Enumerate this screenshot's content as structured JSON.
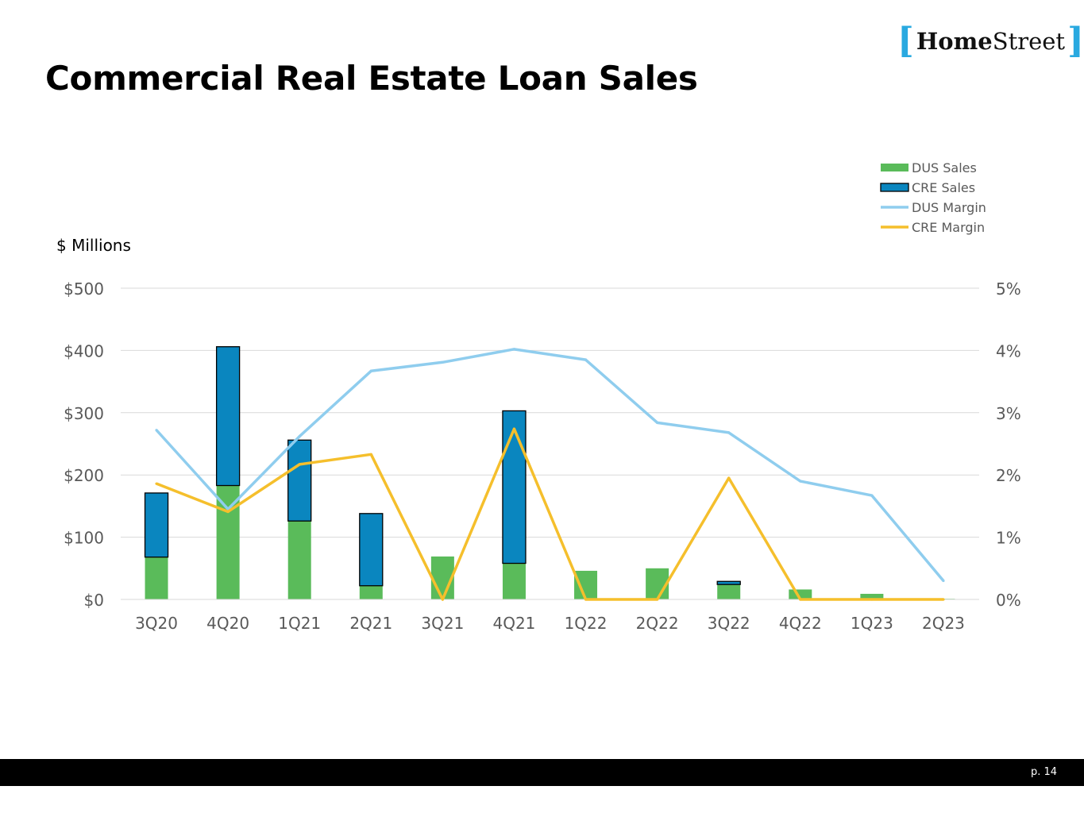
{
  "slide": {
    "title": "Commercial Real Estate Loan Sales",
    "page_number": "p. 14"
  },
  "logo": {
    "open_bracket": "[",
    "home": "Home",
    "street": "Street",
    "close_bracket": "]"
  },
  "colors": {
    "dus_sales": "#5abb5a",
    "cre_sales": "#0a86bf",
    "dus_margin": "#8fcdee",
    "cre_margin": "#f5bf2c",
    "gridline": "#d9d9d9",
    "tick_text": "#595959",
    "legend_text": "#595959"
  },
  "chart_data": {
    "type": "bar",
    "stacked": true,
    "unit_label": "$ Millions",
    "categories": [
      "3Q20",
      "4Q20",
      "1Q21",
      "2Q21",
      "3Q21",
      "4Q21",
      "1Q22",
      "2Q22",
      "3Q22",
      "4Q22",
      "1Q23",
      "2Q23"
    ],
    "y_left": {
      "range": [
        0,
        500
      ],
      "ticks": [
        0,
        100,
        200,
        300,
        400,
        500
      ],
      "tick_labels": [
        "$0",
        "$100",
        "$200",
        "$300",
        "$400",
        "$500"
      ]
    },
    "y_right": {
      "range": [
        0,
        5
      ],
      "ticks": [
        0,
        1,
        2,
        3,
        4,
        5
      ],
      "tick_labels": [
        "0%",
        "1%",
        "2%",
        "3%",
        "4%",
        "5%"
      ]
    },
    "grid": true,
    "legend_position": "top-right",
    "series": [
      {
        "name": "DUS Sales",
        "kind": "bar",
        "axis": "left",
        "values": [
          68,
          183,
          126,
          22,
          69,
          58,
          46,
          50,
          24,
          16,
          9,
          1
        ]
      },
      {
        "name": "CRE Sales",
        "kind": "bar",
        "axis": "left",
        "values": [
          103,
          223,
          130,
          116,
          0,
          245,
          0,
          0,
          5,
          0,
          0,
          0
        ]
      },
      {
        "name": "DUS Margin",
        "kind": "line",
        "axis": "right",
        "values": [
          2.72,
          1.45,
          2.62,
          3.67,
          3.81,
          4.02,
          3.85,
          2.84,
          2.68,
          1.9,
          1.67,
          0.3
        ]
      },
      {
        "name": "CRE Margin",
        "kind": "line",
        "axis": "right",
        "values": [
          1.86,
          1.41,
          2.17,
          2.33,
          0.0,
          2.74,
          0.0,
          0.0,
          1.95,
          0.0,
          0.0,
          0.0
        ]
      }
    ]
  }
}
